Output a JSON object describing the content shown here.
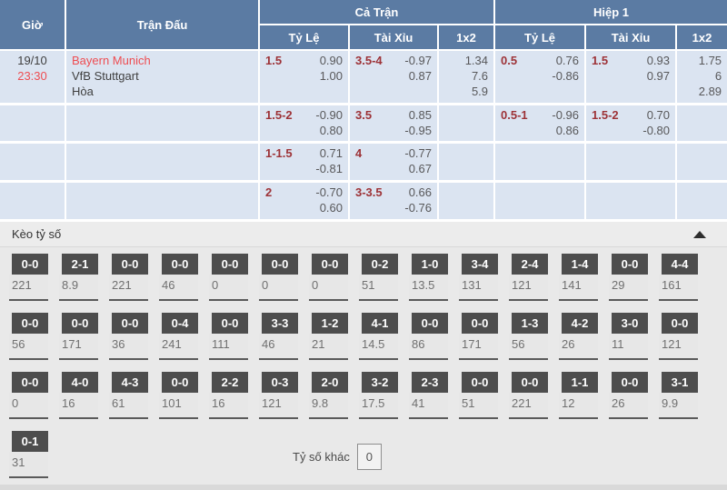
{
  "colors": {
    "header_bg": "#5b7ba3",
    "row_bg": "#dbe4f1",
    "handicap_line": "#9d3237",
    "odds_text": "#58585a",
    "highlight_red": "#ee4d52",
    "score_header_bg": "#4d4d4d",
    "section_bg": "#e9e9e9"
  },
  "odds_table": {
    "headers": {
      "time": "Giờ",
      "match": "Trận Đấu",
      "full_match": "Cả Trận",
      "first_half": "Hiệp 1",
      "handicap": "Tỷ Lệ",
      "over_under": "Tài Xỉu",
      "one_x_two": "1x2"
    },
    "match": {
      "date": "19/10",
      "time": "23:30",
      "home": "Bayern Munich",
      "away": "VfB Stuttgart",
      "draw": "Hòa"
    },
    "rows": [
      {
        "ft_hc": {
          "line": "1.5",
          "o1": "0.90",
          "o2": "1.00"
        },
        "ft_ou": {
          "line": "3.5-4",
          "o1": "-0.97",
          "o2": "0.87"
        },
        "ft_1x2": [
          "1.34",
          "7.6",
          "5.9"
        ],
        "h1_hc": {
          "line": "0.5",
          "o1": "0.76",
          "o2": "-0.86"
        },
        "h1_ou": {
          "line": "1.5",
          "o1": "0.93",
          "o2": "0.97"
        },
        "h1_1x2": [
          "1.75",
          "6",
          "2.89"
        ]
      },
      {
        "ft_hc": {
          "line": "1.5-2",
          "o1": "-0.90",
          "o2": "0.80"
        },
        "ft_ou": {
          "line": "3.5",
          "o1": "0.85",
          "o2": "-0.95"
        },
        "ft_1x2": [],
        "h1_hc": {
          "line": "0.5-1",
          "o1": "-0.96",
          "o2": "0.86"
        },
        "h1_ou": {
          "line": "1.5-2",
          "o1": "0.70",
          "o2": "-0.80"
        },
        "h1_1x2": []
      },
      {
        "ft_hc": {
          "line": "1-1.5",
          "o1": "0.71",
          "o2": "-0.81"
        },
        "ft_ou": {
          "line": "4",
          "o1": "-0.77",
          "o2": "0.67"
        },
        "ft_1x2": [],
        "h1_hc": {
          "line": "",
          "o1": "",
          "o2": ""
        },
        "h1_ou": {
          "line": "",
          "o1": "",
          "o2": ""
        },
        "h1_1x2": []
      },
      {
        "ft_hc": {
          "line": "2",
          "o1": "-0.70",
          "o2": "0.60"
        },
        "ft_ou": {
          "line": "3-3.5",
          "o1": "0.66",
          "o2": "-0.76"
        },
        "ft_1x2": [],
        "h1_hc": {
          "line": "",
          "o1": "",
          "o2": ""
        },
        "h1_ou": {
          "line": "",
          "o1": "",
          "o2": ""
        },
        "h1_1x2": []
      }
    ]
  },
  "correct_score": {
    "title": "Kèo tỷ số",
    "other_label": "Tỷ số khác",
    "other_value": "0",
    "rows": [
      [
        {
          "score": "0-0",
          "odds": "221"
        },
        {
          "score": "2-1",
          "odds": "8.9"
        },
        {
          "score": "0-0",
          "odds": "221"
        },
        {
          "score": "0-0",
          "odds": "46"
        },
        {
          "score": "0-0",
          "odds": "0"
        },
        {
          "score": "0-0",
          "odds": "0"
        },
        {
          "score": "0-0",
          "odds": "0"
        },
        {
          "score": "0-2",
          "odds": "51"
        },
        {
          "score": "1-0",
          "odds": "13.5"
        },
        {
          "score": "3-4",
          "odds": "131"
        },
        {
          "score": "2-4",
          "odds": "121"
        },
        {
          "score": "1-4",
          "odds": "141"
        },
        {
          "score": "0-0",
          "odds": "29"
        },
        {
          "score": "4-4",
          "odds": "161"
        }
      ],
      [
        {
          "score": "0-0",
          "odds": "56"
        },
        {
          "score": "0-0",
          "odds": "171"
        },
        {
          "score": "0-0",
          "odds": "36"
        },
        {
          "score": "0-4",
          "odds": "241"
        },
        {
          "score": "0-0",
          "odds": "111"
        },
        {
          "score": "3-3",
          "odds": "46"
        },
        {
          "score": "1-2",
          "odds": "21"
        },
        {
          "score": "4-1",
          "odds": "14.5"
        },
        {
          "score": "0-0",
          "odds": "86"
        },
        {
          "score": "0-0",
          "odds": "171"
        },
        {
          "score": "1-3",
          "odds": "56"
        },
        {
          "score": "4-2",
          "odds": "26"
        },
        {
          "score": "3-0",
          "odds": "11"
        },
        {
          "score": "0-0",
          "odds": "121"
        }
      ],
      [
        {
          "score": "0-0",
          "odds": "0"
        },
        {
          "score": "4-0",
          "odds": "16"
        },
        {
          "score": "4-3",
          "odds": "61"
        },
        {
          "score": "0-0",
          "odds": "101"
        },
        {
          "score": "2-2",
          "odds": "16"
        },
        {
          "score": "0-3",
          "odds": "121"
        },
        {
          "score": "2-0",
          "odds": "9.8"
        },
        {
          "score": "3-2",
          "odds": "17.5"
        },
        {
          "score": "2-3",
          "odds": "41"
        },
        {
          "score": "0-0",
          "odds": "51"
        },
        {
          "score": "0-0",
          "odds": "221"
        },
        {
          "score": "1-1",
          "odds": "12"
        },
        {
          "score": "0-0",
          "odds": "26"
        },
        {
          "score": "3-1",
          "odds": "9.9"
        }
      ],
      [
        {
          "score": "0-1",
          "odds": "31"
        }
      ]
    ]
  }
}
